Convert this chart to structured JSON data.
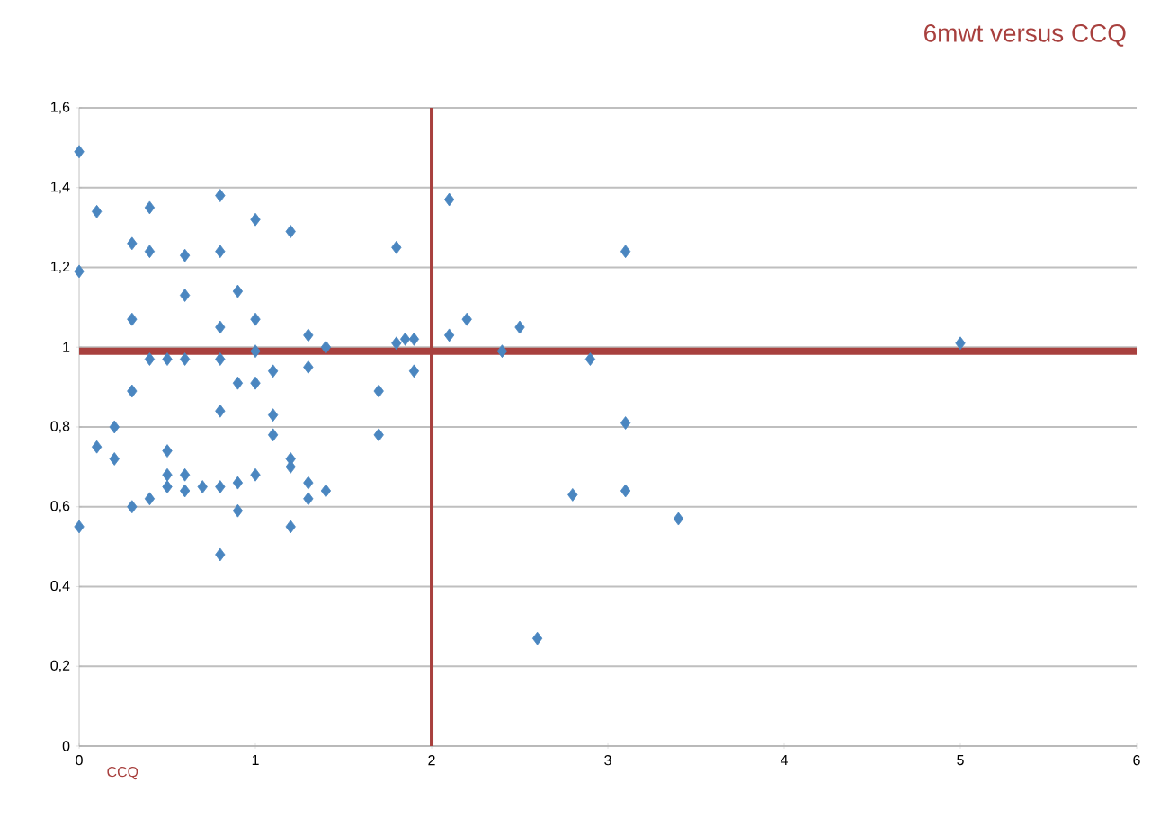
{
  "chart_data": {
    "type": "scatter",
    "title": "6mwt versus CCQ",
    "xlabel": "CCQ",
    "marker": "diamond",
    "grid": "y",
    "color": "#4a86c0",
    "x": [
      0,
      0.1,
      0,
      0.3,
      0.4,
      0.4,
      0.6,
      0.8,
      0.8,
      1.0,
      1.2,
      0.6,
      0.9,
      0.3,
      0.8,
      1.0,
      1.3,
      1.4,
      0.4,
      0.5,
      0.6,
      0.8,
      1.0,
      1.1,
      1.3,
      0.3,
      0.9,
      1.0,
      1.1,
      1.1,
      0.8,
      0.2,
      0.1,
      0.2,
      0.5,
      0.5,
      0.6,
      0.5,
      0.6,
      0.7,
      0.8,
      0.9,
      1.0,
      0.3,
      0.4,
      0.9,
      1.2,
      1.2,
      1.3,
      1.3,
      1.4,
      1.2,
      0,
      0.8,
      1.7,
      1.7,
      1.8,
      1.8,
      1.9,
      1.9,
      2.1,
      2.1,
      2.2,
      2.4,
      2.5,
      2.9,
      3.1,
      3.1,
      3.1,
      2.8,
      3.4,
      2.6,
      5.0,
      1.85
    ],
    "values": [
      1.49,
      1.34,
      1.19,
      1.26,
      1.35,
      1.24,
      1.23,
      1.38,
      1.24,
      1.32,
      1.29,
      1.13,
      1.14,
      1.07,
      1.05,
      1.07,
      1.03,
      1.0,
      0.97,
      0.97,
      0.97,
      0.97,
      0.99,
      0.94,
      0.95,
      0.89,
      0.91,
      0.91,
      0.83,
      0.78,
      0.84,
      0.8,
      0.75,
      0.72,
      0.74,
      0.68,
      0.68,
      0.65,
      0.64,
      0.65,
      0.65,
      0.66,
      0.68,
      0.6,
      0.62,
      0.59,
      0.72,
      0.7,
      0.66,
      0.62,
      0.64,
      0.55,
      0.55,
      0.48,
      0.78,
      0.89,
      1.25,
      1.01,
      1.02,
      0.94,
      1.37,
      1.03,
      1.07,
      0.99,
      1.05,
      0.97,
      1.24,
      0.81,
      0.64,
      0.63,
      0.57,
      0.27,
      1.01,
      1.02
    ],
    "xlim": [
      0,
      6
    ],
    "xticks": [
      0,
      1,
      2,
      3,
      4,
      5,
      6
    ],
    "ylim": [
      0,
      1.6
    ],
    "yticks": [
      0,
      {
        "value": 0.2,
        "label": "0,2"
      },
      {
        "value": 0.4,
        "label": "0,4"
      },
      {
        "value": 0.6,
        "label": "0,6"
      },
      {
        "value": 0.8,
        "label": "0,8"
      },
      1,
      {
        "value": 1.2,
        "label": "1,2"
      },
      {
        "value": 1.4,
        "label": "1,4"
      },
      {
        "value": 1.6,
        "label": "1,6"
      }
    ],
    "ref_lines": [
      {
        "axis": "x",
        "value": 2,
        "color": "#a8403e"
      },
      {
        "axis": "y",
        "value": 0.99,
        "color": "#a8403e"
      }
    ]
  }
}
